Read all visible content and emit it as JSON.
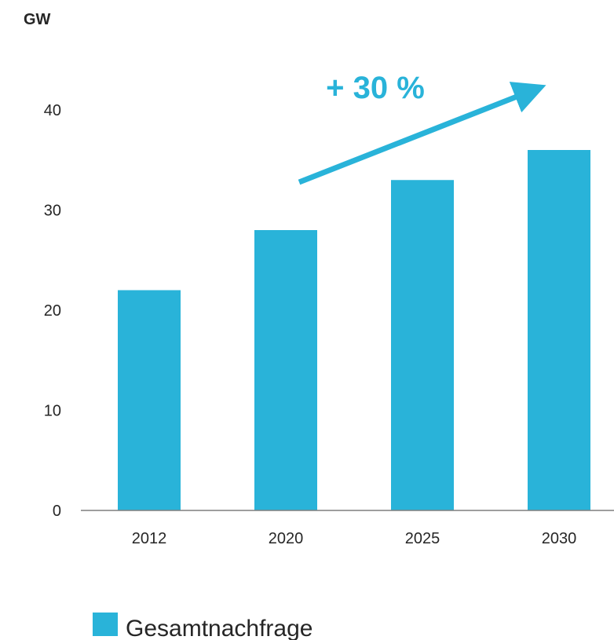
{
  "colors": {
    "bar": "#29B3D9",
    "arrow": "#29B3D9",
    "axis": "#7f7f7f",
    "text": "#262626",
    "annotation": "#29B3D9"
  },
  "chart_data": {
    "type": "bar",
    "ylabel": "GW",
    "categories": [
      "2012",
      "2020",
      "2025",
      "2030"
    ],
    "series": [
      {
        "name": "Gesamtnachfrage",
        "values": [
          22,
          28,
          33,
          36
        ]
      }
    ],
    "ylim": [
      0,
      40
    ],
    "yticks": [
      0,
      10,
      20,
      30,
      40
    ],
    "grid": false,
    "legend": "bottom-left",
    "annotation": {
      "text": "+ 30 %",
      "from_category": "2020",
      "to_category": "2030"
    }
  }
}
